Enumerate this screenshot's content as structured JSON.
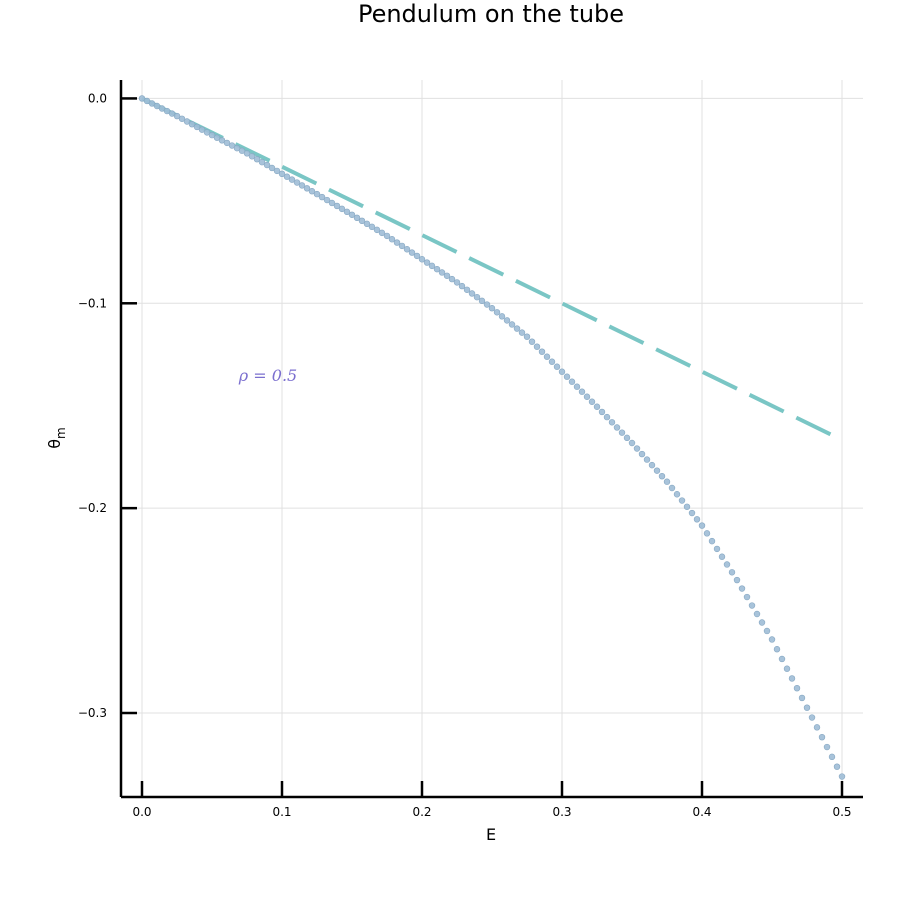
{
  "chart_data": {
    "type": "scatter",
    "title": "Pendulum on the tube",
    "xlabel": "E",
    "ylabel_base": "θ",
    "ylabel_sub": "m",
    "xlim": [
      -0.015,
      0.515
    ],
    "ylim": [
      -0.341,
      0.009
    ],
    "xticks": [
      0.0,
      0.1,
      0.2,
      0.3,
      0.4,
      0.5
    ],
    "xtick_labels": [
      "0.0",
      "0.1",
      "0.2",
      "0.3",
      "0.4",
      "0.5"
    ],
    "yticks": [
      0.0,
      -0.1,
      -0.2,
      -0.3
    ],
    "ytick_labels": [
      "0.0",
      "−0.1",
      "−0.2",
      "−0.3"
    ],
    "grid": true,
    "legend": "none",
    "annotation": {
      "text": "ρ = 0.5",
      "x": 0.09,
      "y": -0.138,
      "color": "#7b6fcf"
    },
    "series": [
      {
        "type": "scatter",
        "color": "#9fbdd6",
        "stroke": "#86a7c2",
        "x": [
          0.0,
          0.025,
          0.05,
          0.075,
          0.1,
          0.125,
          0.15,
          0.175,
          0.2,
          0.225,
          0.25,
          0.275,
          0.3,
          0.325,
          0.35,
          0.375,
          0.4,
          0.425,
          0.45,
          0.475,
          0.5
        ],
        "y": [
          0.0,
          -0.0086,
          -0.0179,
          -0.0268,
          -0.0368,
          -0.0467,
          -0.0568,
          -0.0671,
          -0.0785,
          -0.0898,
          -0.1024,
          -0.1163,
          -0.1334,
          -0.1505,
          -0.1682,
          -0.1871,
          -0.2085,
          -0.2351,
          -0.2641,
          -0.2974,
          -0.331
        ]
      },
      {
        "type": "line",
        "style": "dashed",
        "color": "#7ac6c5",
        "x": [
          0.0,
          0.5
        ],
        "y": [
          0.0,
          -0.1667
        ]
      }
    ]
  }
}
